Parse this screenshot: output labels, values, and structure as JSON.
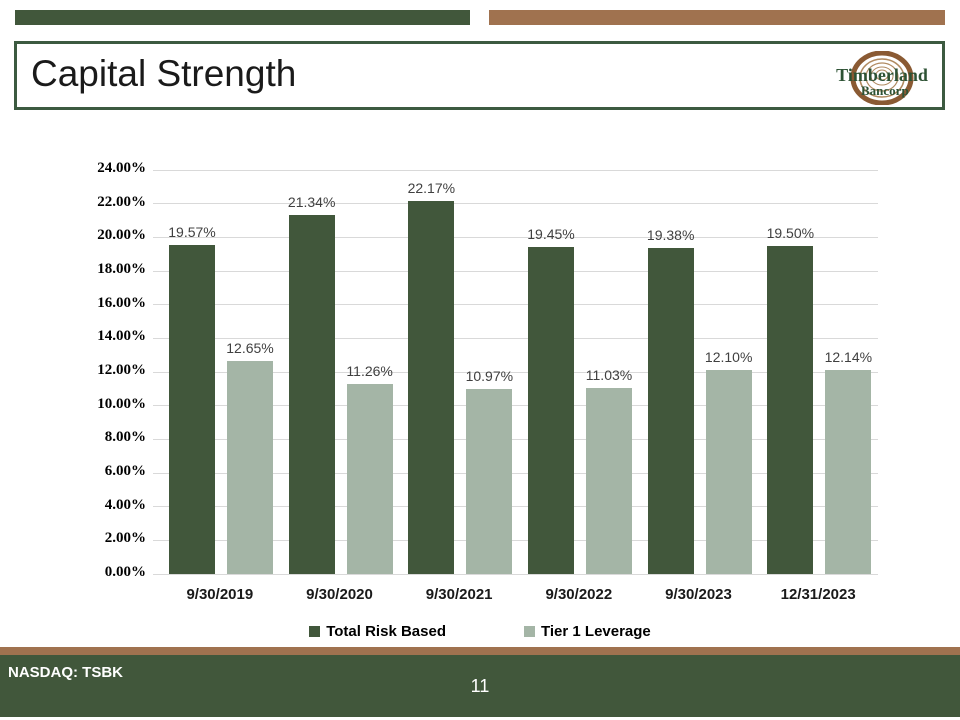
{
  "header": {
    "title": "Capital Strength",
    "logo": {
      "name": "Timberland",
      "subname": "Bancorp"
    }
  },
  "chart_data": {
    "type": "bar",
    "title": "",
    "categories": [
      "9/30/2019",
      "9/30/2020",
      "9/30/2021",
      "9/30/2022",
      "9/30/2023",
      "12/31/2023"
    ],
    "series": [
      {
        "name": "Total Risk Based",
        "color": "#41573B",
        "values": [
          19.57,
          21.34,
          22.17,
          19.45,
          19.38,
          19.5
        ]
      },
      {
        "name": "Tier 1 Leverage",
        "color": "#A4B5A6",
        "values": [
          12.65,
          11.26,
          10.97,
          11.03,
          12.1,
          12.14
        ]
      }
    ],
    "ylim": [
      0,
      24
    ],
    "ytick_step": 2,
    "ytick_format": "0.00%",
    "grid": true,
    "legend_position": "bottom",
    "data_labels": true
  },
  "footer": {
    "ticker": "NASDAQ: TSBK",
    "page_number": "11"
  },
  "colors": {
    "dark_green": "#41573B",
    "sage": "#A4B5A6",
    "brown": "#A0724F",
    "gridline": "#D9D9D9",
    "title_border": "#3C5A40",
    "logo_green": "#2D5234",
    "logo_brown": "#8A5A33"
  }
}
